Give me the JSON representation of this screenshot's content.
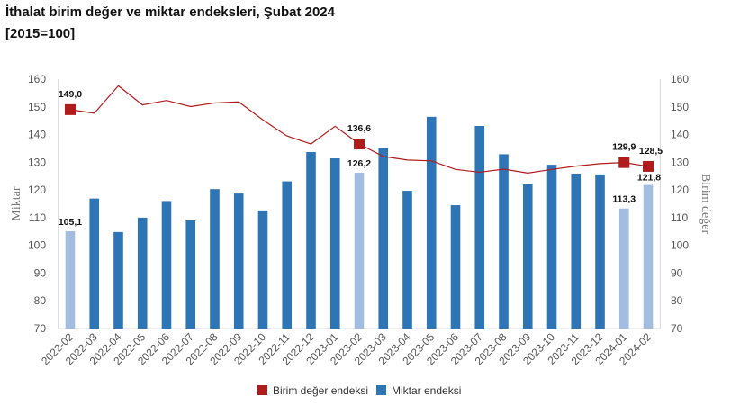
{
  "title": "İthalat birim değer ve miktar endeksleri, Şubat 2024",
  "subtitle": "[2015=100]",
  "chart_data": {
    "type": "bar+line",
    "categories": [
      "2022-02",
      "2022-03",
      "2022-04",
      "2022-05",
      "2022-06",
      "2022-07",
      "2022-08",
      "2022-09",
      "2022-10",
      "2022-11",
      "2022-12",
      "2023-01",
      "2023-02",
      "2023-03",
      "2023-04",
      "2023-05",
      "2023-06",
      "2023-07",
      "2023-08",
      "2023-09",
      "2023-10",
      "2023-11",
      "2023-12",
      "2024-01",
      "2024-02"
    ],
    "series": [
      {
        "name": "Birim değer endeksi",
        "type": "line",
        "axis": "right",
        "color": "#b01c1c",
        "values": [
          149.0,
          147.7,
          157.6,
          150.7,
          152.3,
          150.1,
          151.4,
          151.8,
          145.3,
          139.5,
          136.6,
          143.0,
          136.6,
          132.1,
          130.8,
          130.5,
          127.4,
          126.4,
          127.5,
          126.1,
          127.4,
          128.6,
          129.5,
          129.9,
          128.5
        ],
        "markers": [
          "2022-02",
          "2023-02",
          "2024-01",
          "2024-02"
        ],
        "data_labels": {
          "2022-02": "149,0",
          "2023-02": "136,6",
          "2024-01": "129,9",
          "2024-02": "128,5"
        }
      },
      {
        "name": "Miktar endeksi",
        "type": "bar",
        "axis": "left",
        "color": "#2e75b6",
        "highlight_color": "#a3bde0",
        "values": [
          105.1,
          116.9,
          104.8,
          110.0,
          116.0,
          109.0,
          120.3,
          118.7,
          112.6,
          123.1,
          133.7,
          131.4,
          126.2,
          135.1,
          119.7,
          146.4,
          114.5,
          143.1,
          132.9,
          122.0,
          129.1,
          125.9,
          125.6,
          113.3,
          121.8
        ],
        "highlighted": [
          "2022-02",
          "2023-02",
          "2024-01",
          "2024-02"
        ],
        "data_labels": {
          "2022-02": "105,1",
          "2023-02": "126,2",
          "2024-01": "113,3",
          "2024-02": "121,8"
        }
      }
    ],
    "ylabel": "Miktar",
    "y2label": "Birim değer",
    "ylim": [
      70,
      160
    ],
    "y2lim": [
      70,
      160
    ],
    "yticks": [
      70,
      80,
      90,
      100,
      110,
      120,
      130,
      140,
      150,
      160
    ],
    "grid": false,
    "legend": "bottom"
  }
}
